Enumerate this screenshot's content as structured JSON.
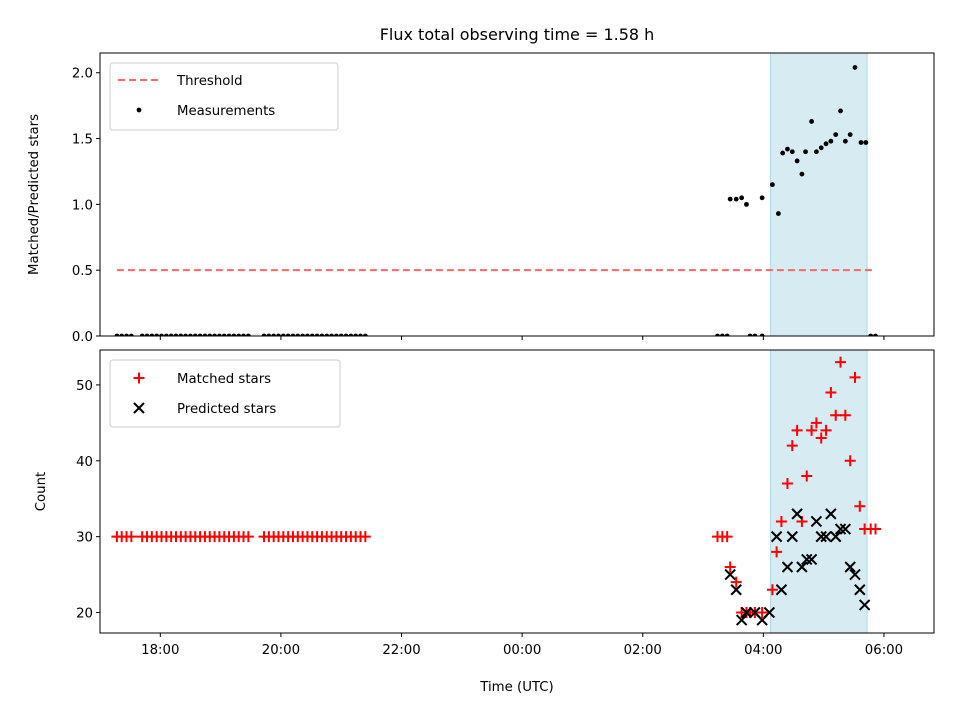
{
  "chart_data": {
    "title": "Flux total observing time = 1.58 h",
    "xlabel": "Time (UTC)",
    "x_unit": "hours since 00:00 UTC (negative = previous day)",
    "xlim": [
      -7.0,
      6.83
    ],
    "xticks": [
      {
        "value": -6,
        "label": "18:00"
      },
      {
        "value": -4,
        "label": "20:00"
      },
      {
        "value": -2,
        "label": "22:00"
      },
      {
        "value": 0,
        "label": "00:00"
      },
      {
        "value": 2,
        "label": "02:00"
      },
      {
        "value": 4,
        "label": "04:00"
      },
      {
        "value": 6,
        "label": "06:00"
      }
    ],
    "shaded_region": {
      "x": [
        4.12,
        5.72
      ],
      "color": "#add8e6"
    },
    "panels": [
      {
        "type": "scatter",
        "ylabel": "Matched/Predicted stars",
        "ylim": [
          0,
          2.15
        ],
        "yticks": [
          {
            "value": 0,
            "label": "0.0"
          },
          {
            "value": 0.5,
            "label": "0.5"
          },
          {
            "value": 1.0,
            "label": "1.0"
          },
          {
            "value": 1.5,
            "label": "1.5"
          },
          {
            "value": 2.0,
            "label": "2.0"
          }
        ],
        "legend": {
          "position": "upper-left"
        },
        "threshold": {
          "name": "Threshold",
          "y": 0.5,
          "x": [
            -6.72,
            5.83
          ],
          "color": "#ff6666"
        },
        "series": [
          {
            "name": "Measurements",
            "marker": "dot",
            "color": "#000000",
            "points": [
              [
                -6.72,
                0
              ],
              [
                -6.64,
                0
              ],
              [
                -6.56,
                0
              ],
              [
                -6.48,
                0
              ],
              [
                -6.3,
                0
              ],
              [
                -6.22,
                0
              ],
              [
                -6.14,
                0
              ],
              [
                -6.06,
                0
              ],
              [
                -5.98,
                0
              ],
              [
                -5.9,
                0
              ],
              [
                -5.82,
                0
              ],
              [
                -5.74,
                0
              ],
              [
                -5.66,
                0
              ],
              [
                -5.58,
                0
              ],
              [
                -5.5,
                0
              ],
              [
                -5.42,
                0
              ],
              [
                -5.34,
                0
              ],
              [
                -5.26,
                0
              ],
              [
                -5.18,
                0
              ],
              [
                -5.1,
                0
              ],
              [
                -5.02,
                0
              ],
              [
                -4.94,
                0
              ],
              [
                -4.86,
                0
              ],
              [
                -4.78,
                0
              ],
              [
                -4.7,
                0
              ],
              [
                -4.62,
                0
              ],
              [
                -4.54,
                0
              ],
              [
                -4.28,
                0
              ],
              [
                -4.2,
                0
              ],
              [
                -4.12,
                0
              ],
              [
                -4.04,
                0
              ],
              [
                -3.96,
                0
              ],
              [
                -3.88,
                0
              ],
              [
                -3.8,
                0
              ],
              [
                -3.72,
                0
              ],
              [
                -3.64,
                0
              ],
              [
                -3.56,
                0
              ],
              [
                -3.48,
                0
              ],
              [
                -3.4,
                0
              ],
              [
                -3.32,
                0
              ],
              [
                -3.24,
                0
              ],
              [
                -3.16,
                0
              ],
              [
                -3.08,
                0
              ],
              [
                -3.0,
                0
              ],
              [
                -2.92,
                0
              ],
              [
                -2.84,
                0
              ],
              [
                -2.76,
                0
              ],
              [
                -2.68,
                0
              ],
              [
                -2.6,
                0
              ],
              [
                3.24,
                0
              ],
              [
                3.32,
                0
              ],
              [
                3.4,
                0
              ],
              [
                3.78,
                0
              ],
              [
                3.86,
                0
              ],
              [
                3.98,
                0
              ],
              [
                5.78,
                0
              ],
              [
                5.86,
                0
              ],
              [
                3.45,
                1.04
              ],
              [
                3.55,
                1.04
              ],
              [
                3.64,
                1.05
              ],
              [
                3.72,
                1.0
              ],
              [
                3.98,
                1.05
              ],
              [
                4.15,
                1.15
              ],
              [
                4.25,
                0.93
              ],
              [
                4.32,
                1.39
              ],
              [
                4.4,
                1.42
              ],
              [
                4.48,
                1.4
              ],
              [
                4.56,
                1.33
              ],
              [
                4.64,
                1.23
              ],
              [
                4.7,
                1.4
              ],
              [
                4.8,
                1.63
              ],
              [
                4.88,
                1.4
              ],
              [
                4.96,
                1.43
              ],
              [
                5.04,
                1.46
              ],
              [
                5.12,
                1.48
              ],
              [
                5.2,
                1.53
              ],
              [
                5.28,
                1.71
              ],
              [
                5.36,
                1.48
              ],
              [
                5.44,
                1.53
              ],
              [
                5.52,
                2.04
              ],
              [
                5.62,
                1.47
              ],
              [
                5.7,
                1.47
              ]
            ]
          }
        ]
      },
      {
        "type": "scatter",
        "ylabel": "Count",
        "ylim": [
          17.3,
          54.6
        ],
        "yticks": [
          {
            "value": 20,
            "label": "20"
          },
          {
            "value": 30,
            "label": "30"
          },
          {
            "value": 40,
            "label": "40"
          },
          {
            "value": 50,
            "label": "50"
          }
        ],
        "legend": {
          "position": "upper-left"
        },
        "series": [
          {
            "name": "Matched stars",
            "marker": "plus",
            "color": "#ff0000",
            "points": [
              [
                -6.72,
                30
              ],
              [
                -6.64,
                30
              ],
              [
                -6.56,
                30
              ],
              [
                -6.48,
                30
              ],
              [
                -6.3,
                30
              ],
              [
                -6.22,
                30
              ],
              [
                -6.14,
                30
              ],
              [
                -6.06,
                30
              ],
              [
                -5.98,
                30
              ],
              [
                -5.9,
                30
              ],
              [
                -5.82,
                30
              ],
              [
                -5.74,
                30
              ],
              [
                -5.66,
                30
              ],
              [
                -5.58,
                30
              ],
              [
                -5.5,
                30
              ],
              [
                -5.42,
                30
              ],
              [
                -5.34,
                30
              ],
              [
                -5.26,
                30
              ],
              [
                -5.18,
                30
              ],
              [
                -5.1,
                30
              ],
              [
                -5.02,
                30
              ],
              [
                -4.94,
                30
              ],
              [
                -4.86,
                30
              ],
              [
                -4.78,
                30
              ],
              [
                -4.7,
                30
              ],
              [
                -4.62,
                30
              ],
              [
                -4.54,
                30
              ],
              [
                -4.28,
                30
              ],
              [
                -4.2,
                30
              ],
              [
                -4.12,
                30
              ],
              [
                -4.04,
                30
              ],
              [
                -3.96,
                30
              ],
              [
                -3.88,
                30
              ],
              [
                -3.8,
                30
              ],
              [
                -3.72,
                30
              ],
              [
                -3.64,
                30
              ],
              [
                -3.56,
                30
              ],
              [
                -3.48,
                30
              ],
              [
                -3.4,
                30
              ],
              [
                -3.32,
                30
              ],
              [
                -3.24,
                30
              ],
              [
                -3.16,
                30
              ],
              [
                -3.08,
                30
              ],
              [
                -3.0,
                30
              ],
              [
                -2.92,
                30
              ],
              [
                -2.84,
                30
              ],
              [
                -2.76,
                30
              ],
              [
                -2.68,
                30
              ],
              [
                -2.6,
                30
              ],
              [
                3.24,
                30
              ],
              [
                3.32,
                30
              ],
              [
                3.4,
                30
              ],
              [
                3.45,
                26
              ],
              [
                3.55,
                24
              ],
              [
                3.64,
                20
              ],
              [
                3.72,
                20
              ],
              [
                3.78,
                20
              ],
              [
                3.86,
                20
              ],
              [
                3.98,
                20
              ],
              [
                4.15,
                23
              ],
              [
                4.22,
                28
              ],
              [
                4.3,
                32
              ],
              [
                4.4,
                37
              ],
              [
                4.48,
                42
              ],
              [
                4.56,
                44
              ],
              [
                4.64,
                32
              ],
              [
                4.72,
                38
              ],
              [
                4.8,
                44
              ],
              [
                4.88,
                45
              ],
              [
                4.96,
                43
              ],
              [
                5.04,
                44
              ],
              [
                5.12,
                49
              ],
              [
                5.2,
                46
              ],
              [
                5.28,
                53
              ],
              [
                5.36,
                46
              ],
              [
                5.44,
                40
              ],
              [
                5.52,
                51
              ],
              [
                5.6,
                34
              ],
              [
                5.68,
                31
              ],
              [
                5.78,
                31
              ],
              [
                5.86,
                31
              ]
            ]
          },
          {
            "name": "Predicted stars",
            "marker": "x",
            "color": "#000000",
            "points": [
              [
                3.45,
                25
              ],
              [
                3.55,
                23
              ],
              [
                3.64,
                19
              ],
              [
                3.72,
                20
              ],
              [
                3.86,
                20
              ],
              [
                3.98,
                19
              ],
              [
                4.1,
                20
              ],
              [
                4.22,
                30
              ],
              [
                4.3,
                23
              ],
              [
                4.4,
                26
              ],
              [
                4.48,
                30
              ],
              [
                4.56,
                33
              ],
              [
                4.64,
                26
              ],
              [
                4.72,
                27
              ],
              [
                4.8,
                27
              ],
              [
                4.88,
                32
              ],
              [
                4.96,
                30
              ],
              [
                5.04,
                30
              ],
              [
                5.12,
                33
              ],
              [
                5.2,
                30
              ],
              [
                5.28,
                31
              ],
              [
                5.36,
                31
              ],
              [
                5.44,
                26
              ],
              [
                5.52,
                25
              ],
              [
                5.6,
                23
              ],
              [
                5.68,
                21
              ]
            ]
          }
        ]
      }
    ]
  }
}
